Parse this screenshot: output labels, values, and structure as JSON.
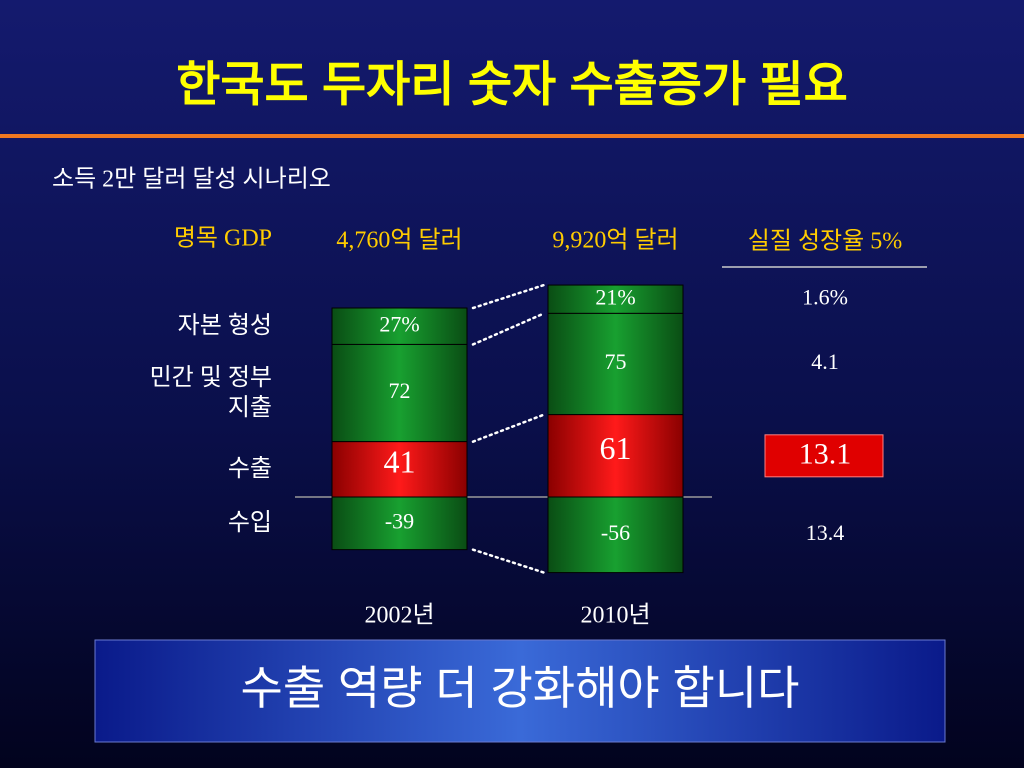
{
  "title": "한국도 두자리 숫자 수출증가 필요",
  "subtitle": "소득 2만 달러 달성 시나리오",
  "banner": "수출 역량 더 강화해야 합니다",
  "chart_data": {
    "type": "stacked_bar",
    "header": "명목 GDP",
    "categories": [
      "2002년",
      "2010년"
    ],
    "category_totals": [
      "4,760억 달러",
      "9,920억 달러"
    ],
    "series": [
      {
        "name": "자본 형성",
        "color": "#0e7a22",
        "values": [
          27,
          21
        ],
        "value_labels": [
          "27%",
          "21%"
        ]
      },
      {
        "name": "민간 및 정부 지출",
        "color": "#0e7a22",
        "values": [
          72,
          75
        ]
      },
      {
        "name": "수출",
        "color": "#d40000",
        "values": [
          41,
          61
        ]
      },
      {
        "name": "수입",
        "color": "#0e7a22",
        "values": [
          -39,
          -56
        ]
      }
    ],
    "growth_header": "실질 성장율 5%",
    "growth": [
      "1.6%",
      "4.1",
      "13.1",
      "13.4"
    ],
    "highlight_series": 2
  }
}
